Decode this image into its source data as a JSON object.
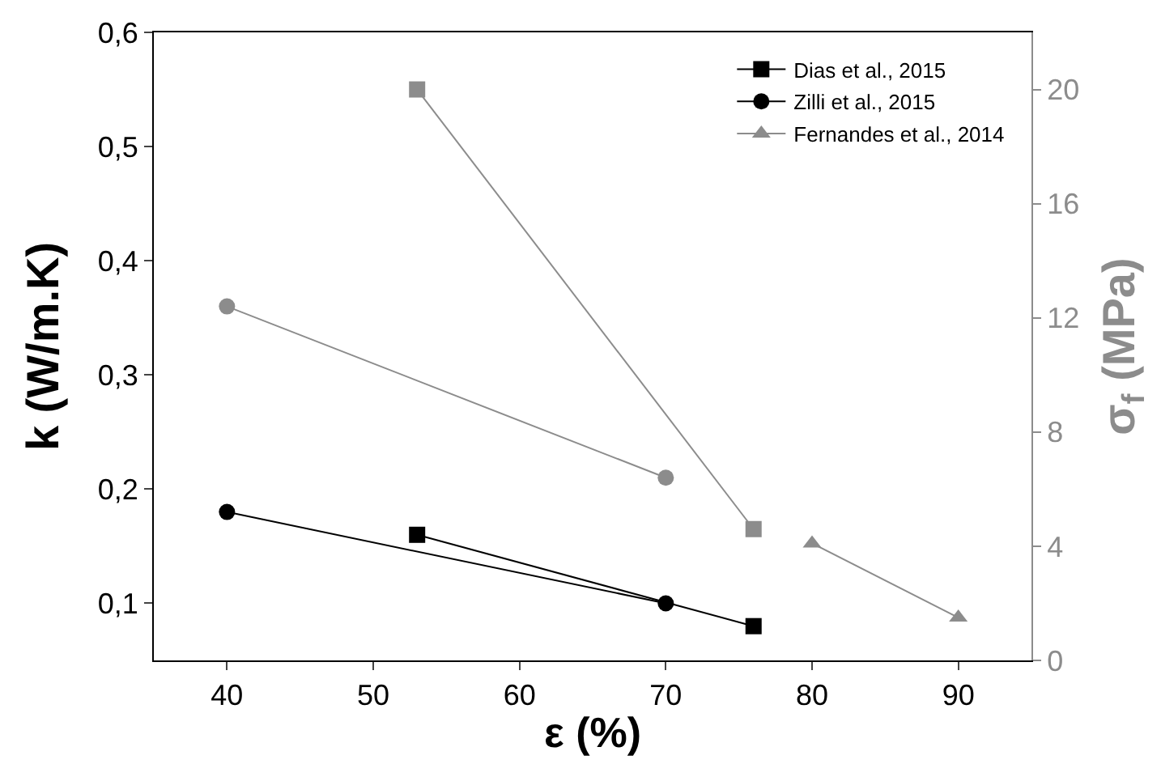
{
  "chart_data": {
    "type": "line",
    "xlabel": "ε (%)",
    "ylabel": "k (W/m.K)",
    "y2label": "σ$_{f}$ (MPa)",
    "xlim": [
      35,
      95
    ],
    "xticks": [
      40,
      50,
      60,
      70,
      80,
      90
    ],
    "ylim": [
      0.05,
      0.6
    ],
    "yticks": [
      {
        "value": 0.1,
        "label": "0,1"
      },
      {
        "value": 0.2,
        "label": "0,2"
      },
      {
        "value": 0.3,
        "label": "0,3"
      },
      {
        "value": 0.4,
        "label": "0,4"
      },
      {
        "value": 0.5,
        "label": "0,5"
      },
      {
        "value": 0.6,
        "label": "0,6"
      }
    ],
    "y2lim": [
      0,
      22
    ],
    "y2ticks": [
      0,
      4,
      8,
      12,
      16,
      20
    ],
    "legend": "top right",
    "series": [
      {
        "name": "Dias et al., 2015",
        "color": "#000000",
        "marker": "square",
        "x": [
          53,
          76
        ],
        "values": [
          0.16,
          0.08
        ]
      },
      {
        "name": "Zilli et al., 2015",
        "color": "#000000",
        "marker": "circle",
        "x": [
          40,
          70
        ],
        "values": [
          0.18,
          0.1
        ]
      },
      {
        "name": "Fernandes et al., 2014",
        "color": "#8c8c8c",
        "marker": "triangle",
        "axis": "y2",
        "x": [
          80,
          90
        ],
        "values": [
          4.1,
          1.5
        ]
      },
      {
        "color": "#8c8c8c",
        "marker": "square",
        "axis": "y2",
        "x": [
          53,
          76
        ],
        "values": [
          20,
          4.6
        ]
      },
      {
        "color": "#8c8c8c",
        "marker": "circle",
        "axis": "y2",
        "x": [
          40,
          70
        ],
        "values": [
          12.4,
          6.4
        ]
      }
    ]
  }
}
